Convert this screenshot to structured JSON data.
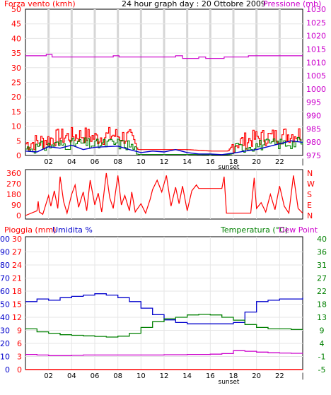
{
  "header": {
    "wind_label": "Forza vento (kmh)",
    "title": "24 hour graph day : 20 Ottobre 2009",
    "pressure_label": "Pressione (mb)",
    "rain_label": "Pioggia (mm)",
    "humidity_label": "Umidita %",
    "temp_label": "Temperatura (°C)",
    "dew_label": "Dew Point"
  },
  "colors": {
    "wind": "#ff0000",
    "wind_avg": "#0000cc",
    "wind_green": "#008000",
    "pressure": "#cc00cc",
    "direction": "#ff0000",
    "rain": "#ff0000",
    "humidity": "#0000cc",
    "temp": "#008000",
    "dew": "#cc00cc",
    "grid": "#c0c0c0",
    "axis": "#000000",
    "minor_grid": "#e6e6e6"
  },
  "chart_data": [
    {
      "type": "line",
      "panel": "wind-pressure",
      "x_labels": [
        "02",
        "04",
        "06",
        "08",
        "10",
        "12",
        "14",
        "16",
        "18",
        "20",
        "22",
        "|"
      ],
      "x_extra_label": "sunset",
      "y_left_ticks": [
        "0",
        "5",
        "10",
        "15",
        "20",
        "25",
        "30",
        "35",
        "40",
        "45",
        "50"
      ],
      "ylim_left": [
        0,
        50
      ],
      "y_right_ticks": [
        "975",
        "980",
        "985",
        "990",
        "995",
        "1000",
        "1005",
        "1010",
        "1015",
        "1020",
        "1025",
        "1030"
      ],
      "ylim_right": [
        975,
        1030
      ],
      "pressure": [
        [
          0,
          1012.5
        ],
        [
          1.5,
          1012.5
        ],
        [
          1.8,
          1013
        ],
        [
          2.1,
          1013
        ],
        [
          2.3,
          1012
        ],
        [
          7.5,
          1012
        ],
        [
          7.6,
          1012.5
        ],
        [
          8,
          1012.5
        ],
        [
          8.1,
          1012
        ],
        [
          12.8,
          1012
        ],
        [
          13,
          1012.5
        ],
        [
          13.5,
          1012.5
        ],
        [
          13.6,
          1011.5
        ],
        [
          14.8,
          1011.5
        ],
        [
          15,
          1012
        ],
        [
          15.5,
          1012
        ],
        [
          15.6,
          1011.5
        ],
        [
          17,
          1011.5
        ],
        [
          17.2,
          1012
        ],
        [
          19,
          1012
        ],
        [
          19.3,
          1012.5
        ],
        [
          24,
          1012.5
        ]
      ],
      "wind_avg": [
        [
          0,
          1.5
        ],
        [
          1,
          1.2
        ],
        [
          2,
          3
        ],
        [
          3,
          2.5
        ],
        [
          4,
          3.5
        ],
        [
          5,
          2
        ],
        [
          6,
          2.8
        ],
        [
          7,
          3
        ],
        [
          8,
          3.2
        ],
        [
          9,
          2
        ],
        [
          10,
          1
        ],
        [
          11,
          1.5
        ],
        [
          12,
          1.2
        ],
        [
          13,
          2
        ],
        [
          14,
          1
        ],
        [
          15,
          0.5
        ],
        [
          16,
          0.5
        ],
        [
          17,
          0.3
        ],
        [
          18,
          0.8
        ],
        [
          19,
          1.5
        ],
        [
          20,
          2
        ],
        [
          21,
          3
        ],
        [
          22,
          4
        ],
        [
          23,
          5
        ],
        [
          24,
          4.5
        ]
      ],
      "wind_gust_profile": [
        [
          0,
          4
        ],
        [
          1.5,
          5
        ],
        [
          2.5,
          6
        ],
        [
          3.5,
          6.5
        ],
        [
          5,
          7
        ],
        [
          6,
          6
        ],
        [
          7.5,
          7
        ],
        [
          9,
          6
        ],
        [
          9.7,
          2
        ],
        [
          12,
          2
        ],
        [
          14,
          2
        ],
        [
          16,
          1.5
        ],
        [
          17.5,
          1.5
        ],
        [
          18,
          4
        ],
        [
          19,
          5
        ],
        [
          20,
          6
        ],
        [
          21.5,
          6.5
        ],
        [
          22.5,
          7
        ],
        [
          24,
          7.5
        ]
      ],
      "wind_gust_peaks": [
        8,
        9
      ],
      "wind_gust_peak_times": [
        [
          3,
          6
        ],
        [
          7.5,
          8.5
        ],
        [
          22,
          23.5
        ]
      ],
      "green_peak": 6
    },
    {
      "type": "line",
      "panel": "wind-direction",
      "y_left_ticks": [
        "0",
        "90",
        "180",
        "270",
        "360"
      ],
      "ylim": [
        0,
        360
      ],
      "right_ticks": [
        "N",
        "W",
        "S",
        "E",
        "N"
      ],
      "direction": [
        [
          0,
          0
        ],
        [
          1,
          40
        ],
        [
          1.1,
          120
        ],
        [
          1.2,
          30
        ],
        [
          1.5,
          10
        ],
        [
          2,
          170
        ],
        [
          2.2,
          80
        ],
        [
          2.5,
          210
        ],
        [
          2.8,
          60
        ],
        [
          3,
          330
        ],
        [
          3.3,
          120
        ],
        [
          3.6,
          20
        ],
        [
          4,
          180
        ],
        [
          4.3,
          260
        ],
        [
          4.6,
          70
        ],
        [
          5,
          200
        ],
        [
          5.3,
          40
        ],
        [
          5.6,
          300
        ],
        [
          6,
          90
        ],
        [
          6.3,
          190
        ],
        [
          6.6,
          30
        ],
        [
          7,
          360
        ],
        [
          7.3,
          150
        ],
        [
          7.6,
          60
        ],
        [
          8,
          340
        ],
        [
          8.3,
          90
        ],
        [
          8.6,
          170
        ],
        [
          9,
          40
        ],
        [
          9.2,
          200
        ],
        [
          9.5,
          30
        ],
        [
          10,
          100
        ],
        [
          10.4,
          20
        ],
        [
          10.8,
          140
        ],
        [
          11,
          220
        ],
        [
          11.4,
          300
        ],
        [
          11.8,
          200
        ],
        [
          12.2,
          340
        ],
        [
          12.6,
          80
        ],
        [
          13,
          240
        ],
        [
          13.3,
          100
        ],
        [
          13.6,
          250
        ],
        [
          14,
          40
        ],
        [
          14.4,
          210
        ],
        [
          14.8,
          260
        ],
        [
          15,
          230
        ],
        [
          17,
          230
        ],
        [
          17.2,
          330
        ],
        [
          17.4,
          20
        ],
        [
          18,
          20
        ],
        [
          19.5,
          20
        ],
        [
          19.8,
          320
        ],
        [
          20,
          60
        ],
        [
          20.4,
          110
        ],
        [
          20.8,
          30
        ],
        [
          21.2,
          180
        ],
        [
          21.6,
          50
        ],
        [
          22,
          250
        ],
        [
          22.4,
          80
        ],
        [
          22.8,
          20
        ],
        [
          23.2,
          340
        ],
        [
          23.6,
          60
        ],
        [
          24,
          20
        ]
      ],
      "dir_spikes": 42
    },
    {
      "type": "line",
      "panel": "rain-humidity-temp",
      "y_rain_ticks": [
        "0",
        "3",
        "6",
        "9",
        "12",
        "15",
        "18",
        "21",
        "24",
        "27",
        "30"
      ],
      "ylim_rain": [
        0,
        30
      ],
      "y_hum_ticks": [
        "0",
        "10",
        "20",
        "30",
        "40",
        "50",
        "60",
        "70",
        "80",
        "90",
        "100"
      ],
      "ylim_hum": [
        0,
        100
      ],
      "y_temp_ticks": [
        "-5",
        "-1",
        "4",
        "9",
        "13",
        "18",
        "22",
        "27",
        "31",
        "36",
        "40"
      ],
      "ylim_temp": [
        -5,
        40
      ],
      "humidity": [
        [
          0,
          52
        ],
        [
          1,
          54
        ],
        [
          2,
          53
        ],
        [
          3,
          55
        ],
        [
          4,
          56
        ],
        [
          5,
          57
        ],
        [
          6,
          58
        ],
        [
          7,
          57
        ],
        [
          8,
          55
        ],
        [
          9,
          52
        ],
        [
          10,
          47
        ],
        [
          11,
          42
        ],
        [
          12,
          38
        ],
        [
          13,
          36
        ],
        [
          14,
          35
        ],
        [
          15,
          35
        ],
        [
          16,
          35
        ],
        [
          17,
          35
        ],
        [
          18,
          36
        ],
        [
          19,
          44
        ],
        [
          20,
          52
        ],
        [
          21,
          53
        ],
        [
          22,
          54
        ],
        [
          23,
          54
        ],
        [
          24,
          55
        ]
      ],
      "temperature": [
        [
          0,
          9
        ],
        [
          1,
          8
        ],
        [
          2,
          7.5
        ],
        [
          3,
          7
        ],
        [
          4,
          6.8
        ],
        [
          5,
          6.6
        ],
        [
          6,
          6.4
        ],
        [
          7,
          6.2
        ],
        [
          8,
          6.5
        ],
        [
          9,
          7.5
        ],
        [
          10,
          9.5
        ],
        [
          11,
          11.5
        ],
        [
          12,
          12.5
        ],
        [
          13,
          13
        ],
        [
          14,
          13.8
        ],
        [
          15,
          14
        ],
        [
          16,
          13.8
        ],
        [
          17,
          13
        ],
        [
          18,
          12
        ],
        [
          19,
          10.5
        ],
        [
          20,
          9.5
        ],
        [
          21,
          9
        ],
        [
          22,
          9
        ],
        [
          23,
          8.8
        ],
        [
          24,
          8.8
        ]
      ],
      "dew_point": [
        [
          0,
          0.2
        ],
        [
          1,
          0
        ],
        [
          2,
          -0.2
        ],
        [
          3,
          -0.2
        ],
        [
          4,
          -0.1
        ],
        [
          5,
          0
        ],
        [
          6,
          0
        ],
        [
          7,
          0
        ],
        [
          8,
          0
        ],
        [
          9,
          0
        ],
        [
          10,
          0
        ],
        [
          11,
          0
        ],
        [
          12,
          0.1
        ],
        [
          13,
          0.1
        ],
        [
          14,
          0.2
        ],
        [
          15,
          0.2
        ],
        [
          16,
          0.3
        ],
        [
          17,
          0.5
        ],
        [
          18,
          1.5
        ],
        [
          19,
          1.3
        ],
        [
          20,
          1
        ],
        [
          21,
          0.8
        ],
        [
          22,
          0.7
        ],
        [
          23,
          0.6
        ],
        [
          24,
          0.5
        ]
      ],
      "rain": [
        [
          0,
          0
        ],
        [
          24,
          0
        ]
      ]
    }
  ]
}
